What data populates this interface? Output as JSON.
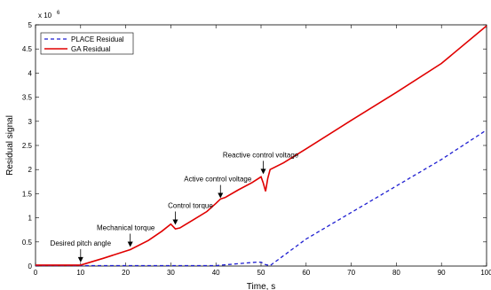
{
  "chart_data": {
    "type": "line",
    "xlabel": "Time, s",
    "ylabel": "Residual signal",
    "y_multiplier": "x 10",
    "y_multiplier_exp": "6",
    "xlim": [
      0,
      100
    ],
    "ylim": [
      0,
      5
    ],
    "x_ticks": [
      "0",
      "10",
      "20",
      "30",
      "40",
      "50",
      "60",
      "70",
      "80",
      "90",
      "100"
    ],
    "y_ticks": [
      "0",
      "0.5",
      "1",
      "1.5",
      "2",
      "2.5",
      "3",
      "3.5",
      "4",
      "4.5",
      "5"
    ],
    "grid": false,
    "legend_position": "top-left",
    "series": [
      {
        "name": "PLACE Residual",
        "style": "dashed",
        "color": "#1f1fd1",
        "x": [
          0,
          10,
          20,
          30,
          40,
          45,
          49,
          50,
          51,
          52,
          60,
          70,
          80,
          90,
          100
        ],
        "y": [
          0.01,
          0.01,
          0.01,
          0.01,
          0.01,
          0.05,
          0.08,
          0.08,
          0.03,
          0.01,
          0.56,
          1.11,
          1.66,
          2.21,
          2.82
        ]
      },
      {
        "name": "GA Residual",
        "style": "solid",
        "color": "#e00000",
        "x": [
          0,
          10,
          15,
          20,
          21,
          25,
          28,
          30,
          31,
          32,
          35,
          38,
          40,
          41,
          42,
          45,
          48,
          50,
          50.5,
          51,
          51.5,
          52,
          55,
          60,
          70,
          80,
          90,
          100
        ],
        "y": [
          0.02,
          0.02,
          0.16,
          0.31,
          0.34,
          0.53,
          0.72,
          0.87,
          0.77,
          0.79,
          0.96,
          1.13,
          1.3,
          1.39,
          1.42,
          1.58,
          1.73,
          1.85,
          1.72,
          1.55,
          1.82,
          2.0,
          2.14,
          2.43,
          3.02,
          3.6,
          4.2,
          4.98
        ]
      }
    ],
    "annotations": [
      {
        "text": "Desired pitch angle",
        "x": 10,
        "y": 0.02
      },
      {
        "text": "Mechanical torque",
        "x": 21,
        "y": 0.34
      },
      {
        "text": "Control torque",
        "x": 31,
        "y": 0.8
      },
      {
        "text": "Active control voltage",
        "x": 41,
        "y": 1.35
      },
      {
        "text": "Reactive control voltage",
        "x": 50.5,
        "y": 1.85
      }
    ]
  }
}
